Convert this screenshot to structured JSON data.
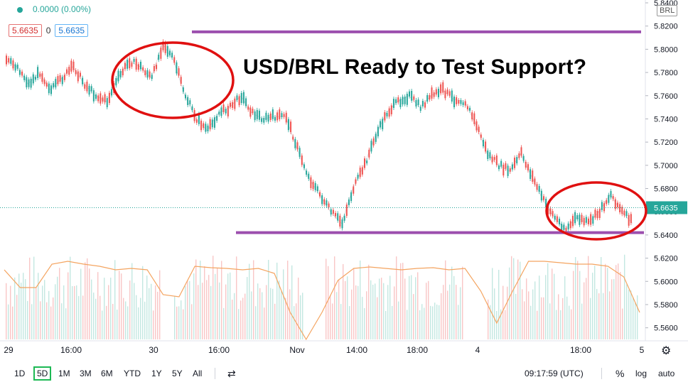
{
  "legend": {
    "change": "0.0000 (0.00%)",
    "open_value": "5.6635",
    "middle": "0",
    "close_value": "5.6635"
  },
  "currency": "BRL",
  "headline": "USD/BRL Ready to Test Support?",
  "price_label": "5.6635",
  "x_axis_labels": [
    "29",
    "16:00",
    "30",
    "16:00",
    "Nov",
    "14:00",
    "18:00",
    "4",
    "18:00",
    "5"
  ],
  "ranges": [
    "1D",
    "5D",
    "1M",
    "3M",
    "6M",
    "YTD",
    "1Y",
    "5Y",
    "All"
  ],
  "active_range": "5D",
  "time_readout": "09:17:59 (UTC)",
  "scale_buttons": {
    "percent": "%",
    "log": "log",
    "auto": "auto"
  },
  "icons": {
    "calendar": "calendar-range-icon",
    "settings": "gear-icon"
  },
  "colors": {
    "up": "#26a69a",
    "down": "#ef5350",
    "annotation_circle": "#e01010",
    "support_line": "#9c4fae",
    "indicator": "#f4a460"
  },
  "chart_data": {
    "type": "line",
    "title": "USD/BRL Ready to Test Support?",
    "ylim": [
      5.55,
      5.84
    ],
    "y_ticks": [
      5.84,
      5.82,
      5.8,
      5.78,
      5.76,
      5.74,
      5.72,
      5.7,
      5.68,
      5.66,
      5.64,
      5.62,
      5.6,
      5.58,
      5.56
    ],
    "x_ticks": [
      "29",
      "16:00",
      "30",
      "16:00",
      "Nov",
      "14:00",
      "18:00",
      "4",
      "18:00",
      "5"
    ],
    "series": [
      {
        "values": [
          5.79,
          5.785,
          5.77,
          5.78,
          5.765,
          5.775,
          5.785,
          5.77,
          5.76,
          5.755,
          5.775,
          5.79,
          5.785,
          5.775,
          5.805,
          5.79,
          5.76,
          5.74,
          5.73,
          5.745,
          5.75,
          5.76,
          5.745,
          5.74,
          5.742,
          5.742,
          5.715,
          5.69,
          5.675,
          5.66,
          5.65,
          5.68,
          5.7,
          5.725,
          5.745,
          5.755,
          5.76,
          5.75,
          5.76,
          5.765,
          5.757,
          5.755,
          5.735,
          5.71,
          5.7,
          5.695,
          5.71,
          5.69,
          5.67,
          5.655,
          5.645,
          5.655,
          5.65,
          5.66,
          5.675,
          5.66,
          5.65
        ]
      }
    ],
    "support_level": 5.642,
    "resistance_level": 5.815,
    "last_price": 5.6635
  }
}
